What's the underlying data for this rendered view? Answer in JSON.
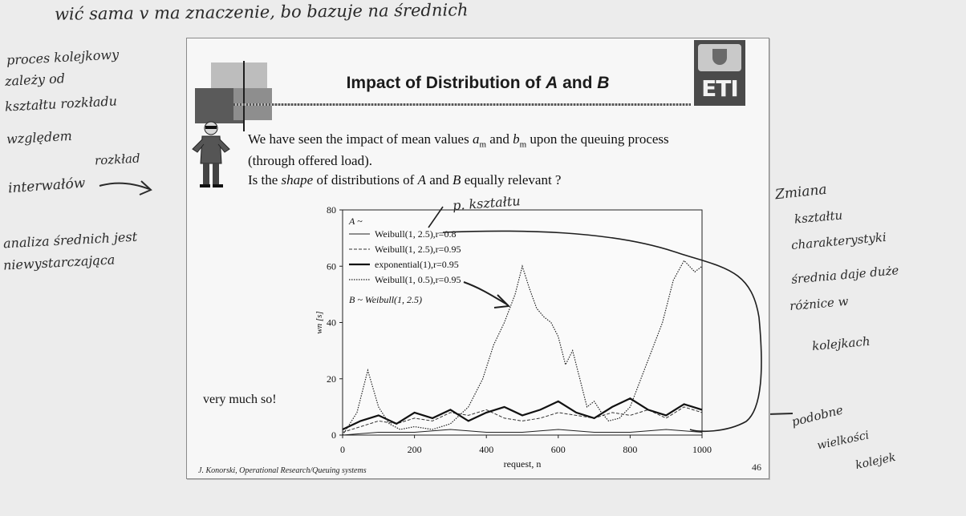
{
  "handwriting": {
    "top_line": "wić sama v ma znaczenie, bo bazuje na średnich",
    "left_notes": [
      "proces kolejkowy",
      "zależy od",
      "kształtu rozkładu",
      "względem",
      "rozkład",
      "interwałów",
      "analiza średnich jest",
      "niewystarczająca"
    ],
    "chart_note": "p. kształtu",
    "right_notes": [
      "Zmiana",
      "kształtu",
      "charakterystyki",
      "średnia daje duże",
      "różnice w",
      "kolejkach"
    ],
    "bottom_right_note": [
      "podobne",
      "wielkości",
      "kolejek"
    ]
  },
  "slide": {
    "title_prefix": "Impact of Distribution of ",
    "title_a": "A",
    "title_and": " and ",
    "title_b": "B",
    "line1_pre": "We have seen the impact of mean values ",
    "a_var": "a",
    "a_sub": "m",
    "and_word": " and ",
    "b_var": "b",
    "b_sub": "m",
    "line1_post": " upon the queuing process",
    "line2": "(through offered load).",
    "line3_pre": "Is the ",
    "line3_shape": "shape",
    "line3_mid": " of distributions of ",
    "line3_a": "A",
    "line3_and": " and ",
    "line3_b": "B",
    "line3_post": " equally relevant ?",
    "very_much": "very much so!",
    "footer_left": "J. Konorski, Operational Research/Queuing systems",
    "page_number": "46",
    "logo_text": "ETI"
  },
  "chart_data": {
    "type": "line",
    "xlabel": "request, n",
    "ylabel": "wn [s]",
    "xlim": [
      0,
      1000
    ],
    "ylim": [
      0,
      80
    ],
    "xticks": [
      0,
      200,
      400,
      600,
      800,
      1000
    ],
    "yticks": [
      0,
      20,
      40,
      60,
      80
    ],
    "legend_header": "A ~",
    "legend_footer": "B ~ Weibull(1, 2.5)",
    "series": [
      {
        "name": "Weibull(1, 2.5),r=0.8",
        "style": "solid-thin",
        "x": [
          0,
          100,
          200,
          300,
          400,
          500,
          600,
          700,
          800,
          900,
          1000
        ],
        "y": [
          0,
          1,
          1,
          2,
          1,
          1,
          2,
          1,
          1,
          2,
          1
        ]
      },
      {
        "name": "Weibull(1, 2.5),r=0.95",
        "style": "dashed",
        "x": [
          0,
          50,
          100,
          150,
          200,
          250,
          300,
          350,
          400,
          450,
          500,
          550,
          600,
          650,
          700,
          750,
          800,
          850,
          900,
          950,
          1000
        ],
        "y": [
          1,
          3,
          5,
          4,
          6,
          5,
          8,
          7,
          9,
          6,
          5,
          6,
          8,
          7,
          6,
          8,
          7,
          9,
          6,
          10,
          8
        ]
      },
      {
        "name": "exponential(1),r=0.95",
        "style": "solid-bold",
        "x": [
          0,
          50,
          100,
          150,
          200,
          250,
          300,
          350,
          400,
          450,
          500,
          550,
          600,
          650,
          700,
          750,
          800,
          850,
          900,
          950,
          1000
        ],
        "y": [
          2,
          5,
          7,
          4,
          8,
          6,
          9,
          5,
          8,
          10,
          7,
          9,
          12,
          8,
          6,
          10,
          13,
          9,
          7,
          11,
          9
        ]
      },
      {
        "name": "Weibull(1, 0.5),r=0.95",
        "style": "dotted",
        "x": [
          0,
          40,
          70,
          100,
          130,
          160,
          200,
          250,
          300,
          350,
          390,
          420,
          450,
          480,
          500,
          520,
          540,
          560,
          580,
          600,
          620,
          640,
          660,
          680,
          700,
          720,
          740,
          770,
          800,
          830,
          860,
          890,
          920,
          950,
          980,
          1000
        ],
        "y": [
          0,
          8,
          23,
          10,
          4,
          2,
          3,
          2,
          4,
          10,
          20,
          32,
          40,
          50,
          60,
          52,
          45,
          42,
          40,
          35,
          25,
          30,
          20,
          10,
          12,
          8,
          5,
          6,
          10,
          20,
          30,
          40,
          55,
          62,
          58,
          60
        ]
      }
    ]
  }
}
